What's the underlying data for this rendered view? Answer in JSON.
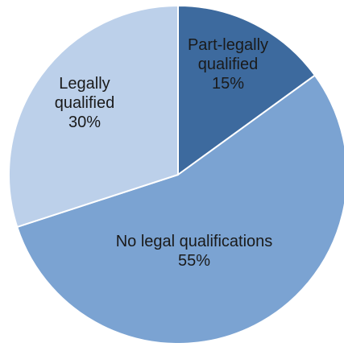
{
  "chart_data": {
    "type": "pie",
    "title": "",
    "slices": [
      {
        "label_lines": [
          "Part-legally",
          "qualified"
        ],
        "value_text": "15%",
        "value": 15,
        "color": "#3d6a9e"
      },
      {
        "label_lines": [
          "No legal qualifications"
        ],
        "value_text": "55%",
        "value": 55,
        "color": "#7ba3d2"
      },
      {
        "label_lines": [
          "Legally",
          "qualified"
        ],
        "value_text": "30%",
        "value": 30,
        "color": "#bcd0ea"
      }
    ],
    "start_angle_deg": 0,
    "direction": "clockwise",
    "slice_border_color": "#ffffff"
  }
}
